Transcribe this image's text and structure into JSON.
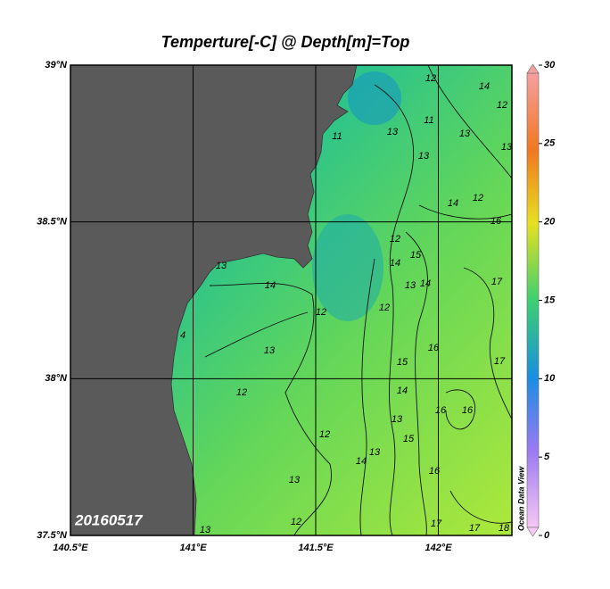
{
  "title": "Temperture[-C] @ Depth[m]=Top",
  "date_stamp": "20160517",
  "watermark": "Ocean Data View",
  "map": {
    "lonlim": [
      140.5,
      142.3
    ],
    "latlim": [
      37.5,
      39
    ],
    "lon_ticks": [
      {
        "value": 140.5,
        "label": "140.5°E"
      },
      {
        "value": 141,
        "label": "141°E"
      },
      {
        "value": 141.5,
        "label": "141.5°E"
      },
      {
        "value": 142,
        "label": "142°E"
      }
    ],
    "lat_ticks": [
      {
        "value": 37.5,
        "label": "37.5°N"
      },
      {
        "value": 38,
        "label": "38°N"
      },
      {
        "value": 38.5,
        "label": "38.5°N"
      },
      {
        "value": 39,
        "label": "39°N"
      }
    ]
  },
  "colorbar": {
    "range": [
      0,
      30
    ],
    "ticks": [
      0,
      5,
      10,
      15,
      20,
      25,
      30
    ]
  },
  "contour_labels": [
    11,
    13,
    11,
    12,
    14,
    12,
    13,
    13,
    13,
    14,
    12,
    16,
    14,
    12,
    15,
    14,
    13,
    17,
    14,
    12,
    12,
    13,
    16,
    15,
    17,
    14,
    12,
    16,
    16,
    13,
    15,
    12,
    13,
    14,
    16,
    13,
    12,
    17,
    17,
    18,
    13,
    4,
    13
  ]
}
